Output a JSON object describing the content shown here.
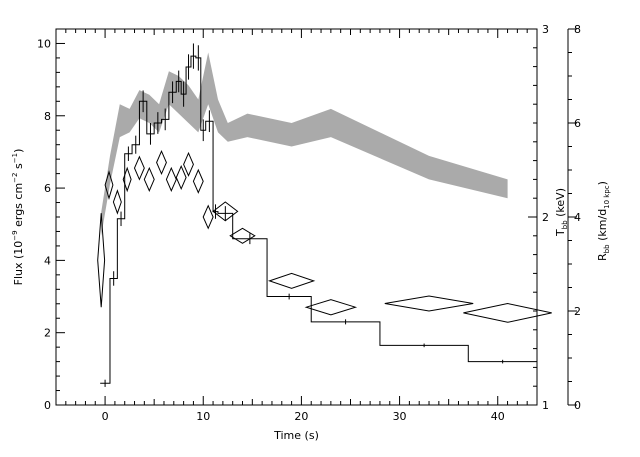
{
  "chart_data": {
    "type": "line",
    "xlabel": "Time (s)",
    "xlim": [
      -5,
      44
    ],
    "x_ticks": [
      0,
      10,
      20,
      30,
      40
    ],
    "ylabel": {
      "pre": "Flux (10",
      "exp1": "−9",
      "mid": " ergs cm",
      "exp2": "−2",
      "mid2": " s",
      "exp3": "−1",
      "post": ")"
    },
    "ylim": [
      0,
      10.4
    ],
    "y_ticks": [
      0,
      2,
      4,
      6,
      8,
      10
    ],
    "right_axis_1": {
      "label": {
        "main": "T",
        "sub": "bb",
        "rest": " (keV)"
      },
      "ticks": [
        1,
        2,
        3
      ]
    },
    "right_axis_2": {
      "label": {
        "main": "R",
        "sub": "bb",
        "rest": " (km/d",
        "sub2": "10 kpc",
        "end": ")"
      },
      "ticks": [
        0,
        2,
        4,
        6,
        8
      ]
    },
    "series": [
      {
        "kind": "flux_histogram",
        "steps": [
          {
            "x0": -0.5,
            "x1": 0.5,
            "y": 0.6,
            "err": 0.1
          },
          {
            "x0": 0.5,
            "x1": 1.25,
            "y": 3.5,
            "err": 0.2
          },
          {
            "x0": 1.25,
            "x1": 2.0,
            "y": 5.15,
            "err": 0.2
          },
          {
            "x0": 2.0,
            "x1": 2.75,
            "y": 6.95,
            "err": 0.2
          },
          {
            "x0": 2.75,
            "x1": 3.5,
            "y": 7.2,
            "err": 0.25
          },
          {
            "x0": 3.5,
            "x1": 4.25,
            "y": 8.4,
            "err": 0.3
          },
          {
            "x0": 4.25,
            "x1": 5.0,
            "y": 7.5,
            "err": 0.3
          },
          {
            "x0": 5.0,
            "x1": 5.75,
            "y": 7.8,
            "err": 0.3
          },
          {
            "x0": 5.75,
            "x1": 6.5,
            "y": 7.9,
            "err": 0.3
          },
          {
            "x0": 6.5,
            "x1": 7.25,
            "y": 8.65,
            "err": 0.3
          },
          {
            "x0": 7.25,
            "x1": 7.75,
            "y": 8.95,
            "err": 0.3
          },
          {
            "x0": 7.75,
            "x1": 8.25,
            "y": 8.6,
            "err": 0.35
          },
          {
            "x0": 8.25,
            "x1": 8.75,
            "y": 9.35,
            "err": 0.35
          },
          {
            "x0": 8.75,
            "x1": 9.25,
            "y": 9.65,
            "err": 0.35
          },
          {
            "x0": 9.25,
            "x1": 9.75,
            "y": 9.6,
            "err": 0.35
          },
          {
            "x0": 9.75,
            "x1": 10.25,
            "y": 7.6,
            "err": 0.3
          },
          {
            "x0": 10.25,
            "x1": 11.0,
            "y": 7.85,
            "err": 0.3
          },
          {
            "x0": 11.0,
            "x1": 11.5,
            "y": 5.35,
            "err": 0.2
          },
          {
            "x0": 11.5,
            "x1": 13.0,
            "y": 5.3,
            "err": 0.2
          },
          {
            "x0": 13.0,
            "x1": 16.5,
            "y": 4.6,
            "err": 0.15
          },
          {
            "x0": 16.5,
            "x1": 21.0,
            "y": 3.0,
            "err": 0.08
          },
          {
            "x0": 21.0,
            "x1": 28.0,
            "y": 2.3,
            "err": 0.07
          },
          {
            "x0": 28.0,
            "x1": 37.0,
            "y": 1.65,
            "err": 0.05
          },
          {
            "x0": 37.0,
            "x1": 44.0,
            "y": 1.2,
            "err": 0.05
          }
        ]
      },
      {
        "kind": "temperature_diamonds",
        "axis": "right_axis_1",
        "points": [
          {
            "x": -0.4,
            "y": 1.77,
            "xerr": 0.35,
            "yerr": 0.25
          },
          {
            "x": 0.4,
            "y": 2.17,
            "xerr": 0.4,
            "yerr": 0.07
          },
          {
            "x": 1.25,
            "y": 2.08,
            "xerr": 0.4,
            "yerr": 0.06
          },
          {
            "x": 2.25,
            "y": 2.2,
            "xerr": 0.4,
            "yerr": 0.06
          },
          {
            "x": 3.5,
            "y": 2.26,
            "xerr": 0.5,
            "yerr": 0.06
          },
          {
            "x": 4.5,
            "y": 2.2,
            "xerr": 0.5,
            "yerr": 0.06
          },
          {
            "x": 5.75,
            "y": 2.29,
            "xerr": 0.5,
            "yerr": 0.06
          },
          {
            "x": 6.75,
            "y": 2.2,
            "xerr": 0.5,
            "yerr": 0.06
          },
          {
            "x": 7.75,
            "y": 2.21,
            "xerr": 0.5,
            "yerr": 0.06
          },
          {
            "x": 8.5,
            "y": 2.28,
            "xerr": 0.5,
            "yerr": 0.06
          },
          {
            "x": 9.5,
            "y": 2.19,
            "xerr": 0.5,
            "yerr": 0.06
          },
          {
            "x": 10.5,
            "y": 2.0,
            "xerr": 0.5,
            "yerr": 0.06
          },
          {
            "x": 12.25,
            "y": 2.03,
            "xerr": 1.25,
            "yerr": 0.05
          },
          {
            "x": 14.0,
            "y": 1.9,
            "xerr": 1.25,
            "yerr": 0.04
          },
          {
            "x": 19.0,
            "y": 1.66,
            "xerr": 2.25,
            "yerr": 0.04
          },
          {
            "x": 23.0,
            "y": 1.52,
            "xerr": 2.5,
            "yerr": 0.04
          },
          {
            "x": 33.0,
            "y": 1.54,
            "xerr": 4.5,
            "yerr": 0.04
          },
          {
            "x": 41.0,
            "y": 1.49,
            "xerr": 4.5,
            "yerr": 0.05
          }
        ]
      },
      {
        "kind": "radius_band",
        "axis": "right_axis_2",
        "color": "#aaaaaa",
        "points": [
          {
            "x": -0.4,
            "lo": 3.6,
            "hi": 4.1
          },
          {
            "x": 0.5,
            "lo": 4.7,
            "hi": 5.3
          },
          {
            "x": 1.5,
            "lo": 5.7,
            "hi": 6.4
          },
          {
            "x": 2.5,
            "lo": 5.8,
            "hi": 6.3
          },
          {
            "x": 3.5,
            "lo": 6.1,
            "hi": 6.7
          },
          {
            "x": 4.5,
            "lo": 6.0,
            "hi": 6.6
          },
          {
            "x": 5.5,
            "lo": 5.8,
            "hi": 6.4
          },
          {
            "x": 6.5,
            "lo": 6.4,
            "hi": 7.1
          },
          {
            "x": 7.5,
            "lo": 6.2,
            "hi": 7.0
          },
          {
            "x": 8.5,
            "lo": 6.0,
            "hi": 6.8
          },
          {
            "x": 9.5,
            "lo": 5.8,
            "hi": 6.5
          },
          {
            "x": 10.5,
            "lo": 6.4,
            "hi": 7.5
          },
          {
            "x": 11.5,
            "lo": 5.8,
            "hi": 6.5
          },
          {
            "x": 12.5,
            "lo": 5.6,
            "hi": 6.0
          },
          {
            "x": 14.5,
            "lo": 5.7,
            "hi": 6.2
          },
          {
            "x": 19.0,
            "lo": 5.5,
            "hi": 6.0
          },
          {
            "x": 23.0,
            "lo": 5.7,
            "hi": 6.3
          },
          {
            "x": 33.0,
            "lo": 4.8,
            "hi": 5.3
          },
          {
            "x": 41.0,
            "lo": 4.4,
            "hi": 4.8
          }
        ]
      }
    ]
  }
}
